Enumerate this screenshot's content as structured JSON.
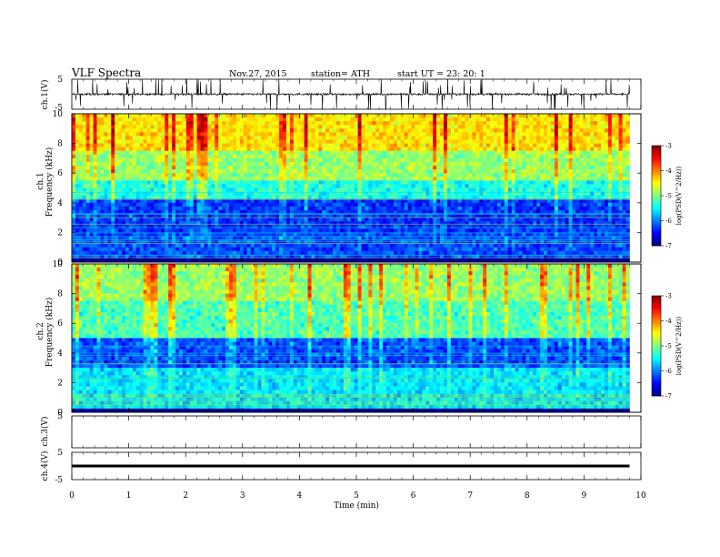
{
  "header": {
    "title": "VLF  Spectra",
    "date": "Nov.27,  2015",
    "station": "station= ATH",
    "start": "start  UT  =    23: 20: 1"
  },
  "chart_data": [
    {
      "type": "line",
      "ylabel": "ch.1(V)",
      "ytick_labels": [
        "5",
        "-5"
      ],
      "ylim": [
        -5,
        5
      ],
      "xlim": [
        0,
        10
      ],
      "style": "noisy waveform centred near 0 V with frequent sferic spikes"
    },
    {
      "type": "heatmap",
      "ylabel_top": "ch.1",
      "ylabel": "Frequency  (kHz)",
      "ytick_labels": [
        "0",
        "2",
        "4",
        "6",
        "8",
        "10"
      ],
      "ylim": [
        0,
        10
      ],
      "xlim": [
        0,
        9.8
      ],
      "colorbar": {
        "label": "log(PSD(V^2/Hz))",
        "tick_labels": [
          "-3",
          "-4",
          "-5",
          "-6",
          "-7"
        ],
        "range": [
          -7,
          -3
        ]
      },
      "bands": [
        {
          "from": 0,
          "to": 0.3,
          "level": -7
        },
        {
          "from": 0.3,
          "to": 2,
          "level": -6.2
        },
        {
          "from": 2,
          "to": 4.3,
          "level": -6.3
        },
        {
          "from": 4.3,
          "to": 5.5,
          "level": -5.4
        },
        {
          "from": 5.5,
          "to": 7.5,
          "level": -4.9
        },
        {
          "from": 7.5,
          "to": 10,
          "level": -4.4
        }
      ]
    },
    {
      "type": "heatmap",
      "ylabel_top": "ch.2",
      "ylabel": "Frequency  (kHz)",
      "ytick_labels": [
        "0",
        "2",
        "4",
        "6",
        "8",
        "10"
      ],
      "ylim": [
        0,
        10
      ],
      "xlim": [
        0,
        9.8
      ],
      "colorbar": {
        "label": "log(PSD(V^2/Hz))",
        "tick_labels": [
          "-3",
          "-4",
          "-5",
          "-6",
          "-7"
        ],
        "range": [
          -7,
          -3
        ]
      },
      "bands": [
        {
          "from": 0,
          "to": 0.3,
          "level": -7
        },
        {
          "from": 0.3,
          "to": 3,
          "level": -5.6
        },
        {
          "from": 3,
          "to": 5,
          "level": -6.2
        },
        {
          "from": 5,
          "to": 7.5,
          "level": -5.2
        },
        {
          "from": 7.5,
          "to": 10,
          "level": -4.9
        }
      ]
    },
    {
      "type": "line",
      "ylabel": "ch.3(V)",
      "ytick_labels": [
        "5"
      ],
      "ylim": [
        -5,
        5
      ],
      "xlim": [
        0,
        10
      ],
      "style": "empty panel"
    },
    {
      "type": "line",
      "ylabel": "ch.4(V)",
      "ytick_labels": [
        "5",
        "-5"
      ],
      "ylim": [
        -5,
        5
      ],
      "xlim": [
        0,
        9.8
      ],
      "style": "flat trace near 0 V"
    }
  ],
  "xaxis": {
    "label": "Time  (min)",
    "tick_labels": [
      "0",
      "1",
      "2",
      "3",
      "4",
      "5",
      "6",
      "7",
      "8",
      "9",
      "10"
    ],
    "range": [
      0,
      10
    ]
  }
}
